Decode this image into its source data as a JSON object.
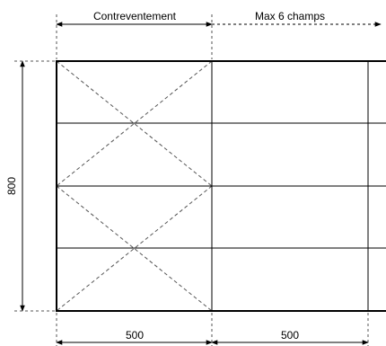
{
  "labels": {
    "bracing": "Contreventement",
    "max_fields": "Max 6 champs",
    "height": "800",
    "width_first": "500",
    "width_second": "500"
  },
  "colors": {
    "line": "#000000",
    "dashed": "#555555",
    "background": "#ffffff"
  },
  "structure": {
    "rows": 4,
    "bracing_style": "x-cross-dashed"
  }
}
